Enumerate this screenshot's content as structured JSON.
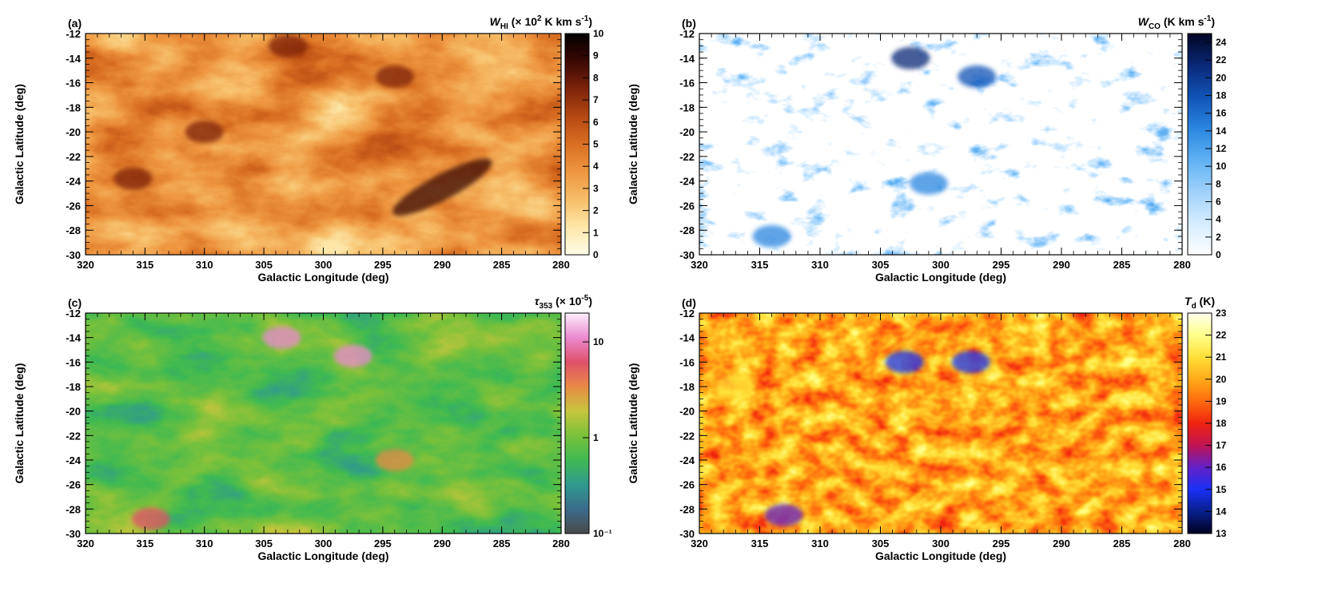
{
  "figure": {
    "x_range": [
      320,
      280
    ],
    "y_range": [
      -30,
      -12
    ],
    "x_ticks": [
      320,
      315,
      310,
      305,
      300,
      295,
      290,
      285,
      280
    ],
    "y_ticks": [
      -12,
      -14,
      -16,
      -18,
      -20,
      -22,
      -24,
      -26,
      -28,
      -30
    ],
    "xlabel": "Galactic Longitude (deg)",
    "ylabel": "Galactic Latitude (deg)"
  },
  "chart_data": [
    {
      "type": "heatmap",
      "panel": "(a)",
      "quantity": "W_HI",
      "colorbar_title": {
        "symbol": "W",
        "sub": "HI",
        "units": "(× 10",
        "pow": "2",
        "units2": " K km s",
        "pow2": "-1",
        "close": ")"
      },
      "colorbar_range": [
        0,
        10
      ],
      "colorbar_ticks": [
        "10",
        "9",
        "8",
        "7",
        "6",
        "5",
        "4",
        "3",
        "2",
        "1",
        "0"
      ],
      "colormap": [
        "#fffde8",
        "#fde7a8",
        "#f7bd68",
        "#ee9640",
        "#d96f22",
        "#b54812",
        "#7d230a",
        "#3a0803",
        "#000000"
      ],
      "dense_features": [
        {
          "l": 290,
          "b": -24.5,
          "value": 9
        },
        {
          "l": 316,
          "b": -23.8,
          "value": 7.5
        },
        {
          "l": 303,
          "b": -13,
          "value": 7.5
        },
        {
          "l": 294,
          "b": -15.5,
          "value": 7
        },
        {
          "l": 310,
          "b": -20,
          "value": 7
        }
      ]
    },
    {
      "type": "heatmap",
      "panel": "(b)",
      "quantity": "W_CO",
      "colorbar_title": {
        "symbol": "W",
        "sub": "CO",
        "units": "(K km s",
        "pow": "-1",
        "close": ")"
      },
      "colorbar_range": [
        0,
        25
      ],
      "colorbar_ticks": [
        "24",
        "22",
        "20",
        "18",
        "16",
        "14",
        "12",
        "10",
        "8",
        "6",
        "4",
        "2",
        "0"
      ],
      "colormap": [
        "#ffffff",
        "#d5ecff",
        "#9fd1fb",
        "#5fb1f3",
        "#2a86e0",
        "#1153b6",
        "#0a2877",
        "#000522"
      ],
      "dense_features": [
        {
          "l": 302.5,
          "b": -14,
          "value": 22
        },
        {
          "l": 297,
          "b": -15.5,
          "value": 18
        },
        {
          "l": 314,
          "b": -28.5,
          "value": 16
        },
        {
          "l": 301,
          "b": -24.2,
          "value": 14
        }
      ]
    },
    {
      "type": "heatmap",
      "panel": "(c)",
      "quantity": "tau_353",
      "colorbar_title": {
        "symbol": "τ",
        "sub": "353",
        "units": "(× 10",
        "pow": "-5",
        "close": ")"
      },
      "colorbar_range": [
        0.1,
        20
      ],
      "colorbar_scale": "log",
      "colorbar_ticks": [
        "10",
        "1",
        "10⁻¹"
      ],
      "colormap": [
        "#4a4a4a",
        "#3b6b8a",
        "#2f9a8f",
        "#3fba52",
        "#7ac13b",
        "#c6c63d",
        "#e88a46",
        "#e0506a",
        "#eb8ad0",
        "#fdf0fc"
      ],
      "dense_features": [
        {
          "l": 303.5,
          "b": -14,
          "value": 12
        },
        {
          "l": 297.5,
          "b": -15.5,
          "value": 12
        },
        {
          "l": 314.5,
          "b": -28.8,
          "value": 5
        },
        {
          "l": 294,
          "b": -24,
          "value": 3
        }
      ]
    },
    {
      "type": "heatmap",
      "panel": "(d)",
      "quantity": "T_d",
      "colorbar_title": {
        "symbol": "T",
        "sub": "d",
        "units": "(K)"
      },
      "colorbar_range": [
        13,
        23
      ],
      "colorbar_ticks": [
        "23",
        "22",
        "21",
        "20",
        "19",
        "18",
        "17",
        "16",
        "15",
        "14",
        "13"
      ],
      "colormap": [
        "#000020",
        "#081f8c",
        "#1a30f5",
        "#6320c8",
        "#c01452",
        "#f02310",
        "#ff6a0e",
        "#ffaa18",
        "#ffe038",
        "#ffff8a",
        "#ffffee"
      ],
      "dense_features": [
        {
          "l": 303,
          "b": -16,
          "value": 15
        },
        {
          "l": 297.5,
          "b": -16,
          "value": 15
        },
        {
          "l": 313,
          "b": -28.5,
          "value": 15.5
        },
        {
          "l": 317,
          "b": -18,
          "value": 21
        }
      ]
    }
  ]
}
